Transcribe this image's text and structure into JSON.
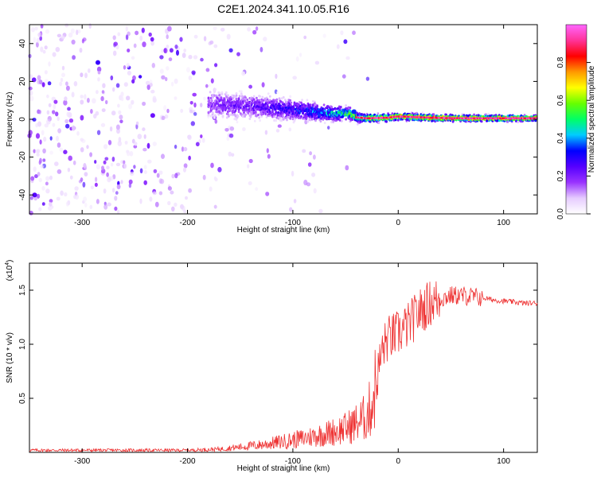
{
  "title": "C2E1.2024.341.10.05.R16",
  "chart_data": [
    {
      "type": "heatmap",
      "name": "spectrogram",
      "xlabel": "Height of straight line (km)",
      "ylabel": "Frequency (Hz)",
      "xlim": [
        -350,
        132
      ],
      "ylim": [
        -50,
        50
      ],
      "xticks": [
        -300,
        -200,
        -100,
        0,
        100
      ],
      "yticks": [
        -40,
        -20,
        0,
        20,
        40
      ],
      "colorbar": {
        "label": "Normalized spectral amplitude",
        "range": [
          0,
          1
        ],
        "ticks": [
          "0.0",
          "0.2",
          "0.4",
          "0.6",
          "0.8"
        ],
        "colors": [
          "#ffffff",
          "#e6ccff",
          "#9933ff",
          "#5500ff",
          "#0000ff",
          "#00ccff",
          "#00ff66",
          "#66ff00",
          "#ffff00",
          "#ff9900",
          "#ff0000",
          "#ff3399",
          "#ff66ff"
        ]
      },
      "band_center": [
        [
          -180,
          8
        ],
        [
          -150,
          7
        ],
        [
          -120,
          6
        ],
        [
          -100,
          5
        ],
        [
          -80,
          4
        ],
        [
          -60,
          3
        ],
        [
          -45,
          3
        ],
        [
          -40,
          1
        ],
        [
          -30,
          0.5
        ],
        [
          -10,
          0.8
        ],
        [
          0,
          1.5
        ],
        [
          30,
          0.8
        ],
        [
          60,
          0.5
        ],
        [
          100,
          0.5
        ],
        [
          132,
          0.5
        ]
      ],
      "band_halfwidth": [
        [
          -180,
          12
        ],
        [
          -120,
          10
        ],
        [
          -80,
          8
        ],
        [
          -50,
          6
        ],
        [
          -35,
          4
        ],
        [
          0,
          3
        ],
        [
          132,
          2.5
        ]
      ],
      "band_peak": [
        [
          -180,
          0.18
        ],
        [
          -130,
          0.22
        ],
        [
          -90,
          0.3
        ],
        [
          -60,
          0.4
        ],
        [
          -45,
          0.5
        ],
        [
          -30,
          0.55
        ],
        [
          0,
          0.7
        ],
        [
          132,
          0.72
        ]
      ],
      "bright_spots": [
        {
          "x": -285,
          "y": 30,
          "amp": 0.28
        },
        {
          "x": -345,
          "y": -40,
          "amp": 0.25
        },
        {
          "x": -233,
          "y": 2,
          "amp": 0.22
        },
        {
          "x": -42,
          "y": 4,
          "amp": 0.35
        }
      ],
      "noise_density": [
        [
          -350,
          0.55
        ],
        [
          -250,
          0.45
        ],
        [
          -200,
          0.3
        ],
        [
          -160,
          0.18
        ],
        [
          -120,
          0.1
        ],
        [
          -80,
          0.06
        ],
        [
          -40,
          0.02
        ],
        [
          0,
          0.0
        ],
        [
          132,
          0.0
        ]
      ]
    },
    {
      "type": "line",
      "name": "snr",
      "xlabel": "Height of straight line (km)",
      "ylabel": "SNR (10 * v/v)",
      "scale_label": "(x10",
      "scale_exponent": "4",
      "scale_close": ")",
      "xlim": [
        -350,
        132
      ],
      "ylim": [
        0,
        1.75
      ],
      "xticks": [
        -300,
        -200,
        -100,
        0,
        100
      ],
      "yticks": [
        "0.5",
        "1.0",
        "1.5"
      ],
      "color": "#ee3333",
      "x": [
        -350,
        -300,
        -250,
        -200,
        -170,
        -150,
        -130,
        -110,
        -90,
        -70,
        -50,
        -40,
        -30,
        -25,
        -20,
        -15,
        -10,
        0,
        10,
        20,
        30,
        40,
        50,
        60,
        70,
        80,
        90,
        100,
        110,
        120,
        132
      ],
      "y": [
        0.02,
        0.02,
        0.02,
        0.02,
        0.03,
        0.05,
        0.07,
        0.1,
        0.13,
        0.17,
        0.22,
        0.27,
        0.33,
        0.45,
        0.7,
        0.95,
        1.05,
        1.1,
        1.18,
        1.3,
        1.38,
        1.42,
        1.45,
        1.45,
        1.44,
        1.43,
        1.41,
        1.4,
        1.39,
        1.38,
        1.38
      ]
    }
  ]
}
